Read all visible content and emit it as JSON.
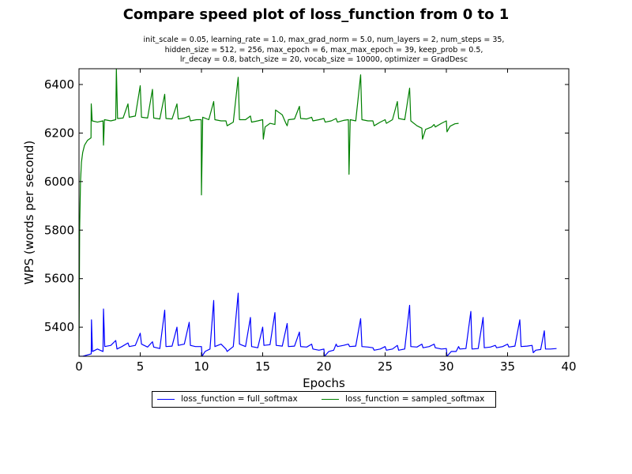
{
  "title": "Compare speed plot of loss_function from 0 to 1",
  "subtitle_lines": [
    "init_scale = 0.05, learning_rate = 1.0, max_grad_norm = 5.0, num_layers = 2, num_steps = 35,",
    "hidden_size = 512,   = 256, max_epoch = 6, max_max_epoch = 39, keep_prob = 0.5,",
    "lr_decay = 0.8, batch_size = 20, vocab_size = 10000, optimizer = GradDesc"
  ],
  "chart_data": {
    "type": "line",
    "xlabel": "Epochs",
    "ylabel": "WPS (words per second)",
    "xlim": [
      0,
      40
    ],
    "ylim": [
      5280,
      6465
    ],
    "xticks": [
      0,
      5,
      10,
      15,
      20,
      25,
      30,
      35,
      40
    ],
    "yticks": [
      5400,
      5600,
      5800,
      6000,
      6200,
      6400
    ],
    "grid": false,
    "legend_position": "bottom-center",
    "series": [
      {
        "name": "loss_function = full_softmax",
        "color": "#0000ff",
        "points": [
          [
            0.0,
            5280
          ],
          [
            0.3,
            5280
          ],
          [
            1.0,
            5290
          ],
          [
            1.02,
            5430
          ],
          [
            1.1,
            5300
          ],
          [
            1.5,
            5310
          ],
          [
            1.96,
            5300
          ],
          [
            2.0,
            5475
          ],
          [
            2.1,
            5320
          ],
          [
            2.6,
            5325
          ],
          [
            3.0,
            5345
          ],
          [
            3.1,
            5310
          ],
          [
            3.5,
            5320
          ],
          [
            4.0,
            5335
          ],
          [
            4.1,
            5320
          ],
          [
            4.6,
            5325
          ],
          [
            5.0,
            5375
          ],
          [
            5.1,
            5330
          ],
          [
            5.6,
            5318
          ],
          [
            6.0,
            5340
          ],
          [
            6.1,
            5318
          ],
          [
            6.6,
            5312
          ],
          [
            7.0,
            5470
          ],
          [
            7.1,
            5320
          ],
          [
            7.6,
            5322
          ],
          [
            8.0,
            5400
          ],
          [
            8.1,
            5325
          ],
          [
            8.6,
            5330
          ],
          [
            9.0,
            5420
          ],
          [
            9.1,
            5325
          ],
          [
            9.5,
            5320
          ],
          [
            10.0,
            5320
          ],
          [
            10.05,
            5280
          ],
          [
            10.3,
            5300
          ],
          [
            10.7,
            5310
          ],
          [
            11.0,
            5510
          ],
          [
            11.1,
            5320
          ],
          [
            11.6,
            5330
          ],
          [
            12.0,
            5310
          ],
          [
            12.1,
            5300
          ],
          [
            12.6,
            5320
          ],
          [
            13.0,
            5540
          ],
          [
            13.1,
            5330
          ],
          [
            13.6,
            5320
          ],
          [
            14.0,
            5440
          ],
          [
            14.1,
            5320
          ],
          [
            14.6,
            5315
          ],
          [
            15.0,
            5400
          ],
          [
            15.1,
            5325
          ],
          [
            15.6,
            5328
          ],
          [
            16.0,
            5460
          ],
          [
            16.1,
            5325
          ],
          [
            16.6,
            5322
          ],
          [
            17.0,
            5415
          ],
          [
            17.1,
            5320
          ],
          [
            17.6,
            5322
          ],
          [
            18.0,
            5380
          ],
          [
            18.1,
            5320
          ],
          [
            18.6,
            5318
          ],
          [
            19.0,
            5330
          ],
          [
            19.1,
            5310
          ],
          [
            19.6,
            5305
          ],
          [
            20.0,
            5310
          ],
          [
            20.05,
            5280
          ],
          [
            20.4,
            5300
          ],
          [
            20.8,
            5305
          ],
          [
            21.0,
            5330
          ],
          [
            21.1,
            5320
          ],
          [
            21.6,
            5325
          ],
          [
            22.0,
            5330
          ],
          [
            22.1,
            5320
          ],
          [
            22.6,
            5322
          ],
          [
            23.0,
            5435
          ],
          [
            23.1,
            5320
          ],
          [
            23.6,
            5318
          ],
          [
            24.0,
            5315
          ],
          [
            24.1,
            5305
          ],
          [
            24.6,
            5310
          ],
          [
            25.0,
            5320
          ],
          [
            25.1,
            5305
          ],
          [
            25.6,
            5310
          ],
          [
            26.0,
            5325
          ],
          [
            26.1,
            5305
          ],
          [
            26.6,
            5310
          ],
          [
            27.0,
            5490
          ],
          [
            27.1,
            5320
          ],
          [
            27.6,
            5318
          ],
          [
            28.0,
            5330
          ],
          [
            28.1,
            5315
          ],
          [
            28.6,
            5320
          ],
          [
            29.0,
            5330
          ],
          [
            29.1,
            5315
          ],
          [
            29.6,
            5310
          ],
          [
            30.0,
            5312
          ],
          [
            30.05,
            5280
          ],
          [
            30.4,
            5300
          ],
          [
            30.8,
            5300
          ],
          [
            31.0,
            5320
          ],
          [
            31.1,
            5310
          ],
          [
            31.6,
            5312
          ],
          [
            32.0,
            5465
          ],
          [
            32.1,
            5310
          ],
          [
            32.6,
            5312
          ],
          [
            33.0,
            5440
          ],
          [
            33.1,
            5315
          ],
          [
            33.6,
            5318
          ],
          [
            34.0,
            5325
          ],
          [
            34.1,
            5315
          ],
          [
            34.6,
            5320
          ],
          [
            35.0,
            5330
          ],
          [
            35.1,
            5318
          ],
          [
            35.6,
            5322
          ],
          [
            36.0,
            5430
          ],
          [
            36.1,
            5320
          ],
          [
            36.6,
            5322
          ],
          [
            37.0,
            5325
          ],
          [
            37.1,
            5295
          ],
          [
            37.3,
            5305
          ],
          [
            37.7,
            5308
          ],
          [
            38.0,
            5385
          ],
          [
            38.1,
            5310
          ],
          [
            38.5,
            5310
          ],
          [
            39.0,
            5312
          ]
        ]
      },
      {
        "name": "loss_function = sampled_softmax",
        "color": "#008000",
        "points": [
          [
            0.0,
            5280
          ],
          [
            0.05,
            5800
          ],
          [
            0.12,
            6000
          ],
          [
            0.2,
            6080
          ],
          [
            0.3,
            6120
          ],
          [
            0.45,
            6150
          ],
          [
            0.7,
            6170
          ],
          [
            0.98,
            6180
          ],
          [
            1.0,
            6320
          ],
          [
            1.08,
            6250
          ],
          [
            1.5,
            6245
          ],
          [
            1.96,
            6250
          ],
          [
            2.0,
            6150
          ],
          [
            2.08,
            6255
          ],
          [
            2.6,
            6250
          ],
          [
            3.0,
            6255
          ],
          [
            3.05,
            6465
          ],
          [
            3.15,
            6260
          ],
          [
            3.6,
            6262
          ],
          [
            4.0,
            6320
          ],
          [
            4.1,
            6265
          ],
          [
            4.6,
            6270
          ],
          [
            5.0,
            6395
          ],
          [
            5.1,
            6265
          ],
          [
            5.6,
            6262
          ],
          [
            6.0,
            6380
          ],
          [
            6.1,
            6262
          ],
          [
            6.6,
            6258
          ],
          [
            7.0,
            6360
          ],
          [
            7.1,
            6260
          ],
          [
            7.6,
            6258
          ],
          [
            8.0,
            6320
          ],
          [
            8.1,
            6258
          ],
          [
            8.6,
            6262
          ],
          [
            9.0,
            6270
          ],
          [
            9.1,
            6250
          ],
          [
            9.6,
            6255
          ],
          [
            9.98,
            6255
          ],
          [
            10.0,
            5945
          ],
          [
            10.1,
            6265
          ],
          [
            10.6,
            6255
          ],
          [
            11.0,
            6330
          ],
          [
            11.1,
            6255
          ],
          [
            11.6,
            6250
          ],
          [
            12.0,
            6250
          ],
          [
            12.1,
            6230
          ],
          [
            12.6,
            6245
          ],
          [
            13.0,
            6430
          ],
          [
            13.1,
            6255
          ],
          [
            13.6,
            6255
          ],
          [
            14.0,
            6270
          ],
          [
            14.1,
            6245
          ],
          [
            14.6,
            6250
          ],
          [
            15.0,
            6255
          ],
          [
            15.05,
            6175
          ],
          [
            15.2,
            6225
          ],
          [
            15.6,
            6240
          ],
          [
            16.0,
            6235
          ],
          [
            16.05,
            6295
          ],
          [
            16.6,
            6275
          ],
          [
            16.9,
            6240
          ],
          [
            17.0,
            6230
          ],
          [
            17.1,
            6255
          ],
          [
            17.6,
            6258
          ],
          [
            18.0,
            6310
          ],
          [
            18.1,
            6260
          ],
          [
            18.6,
            6258
          ],
          [
            19.0,
            6265
          ],
          [
            19.1,
            6250
          ],
          [
            19.6,
            6255
          ],
          [
            20.0,
            6260
          ],
          [
            20.1,
            6245
          ],
          [
            20.6,
            6250
          ],
          [
            21.0,
            6260
          ],
          [
            21.1,
            6245
          ],
          [
            21.6,
            6252
          ],
          [
            22.0,
            6255
          ],
          [
            22.05,
            6030
          ],
          [
            22.15,
            6255
          ],
          [
            22.6,
            6250
          ],
          [
            23.0,
            6440
          ],
          [
            23.1,
            6255
          ],
          [
            23.6,
            6250
          ],
          [
            24.0,
            6250
          ],
          [
            24.1,
            6230
          ],
          [
            24.6,
            6245
          ],
          [
            25.0,
            6255
          ],
          [
            25.1,
            6240
          ],
          [
            25.6,
            6255
          ],
          [
            26.0,
            6330
          ],
          [
            26.1,
            6260
          ],
          [
            26.6,
            6255
          ],
          [
            27.0,
            6385
          ],
          [
            27.1,
            6250
          ],
          [
            27.6,
            6230
          ],
          [
            28.0,
            6220
          ],
          [
            28.05,
            6175
          ],
          [
            28.3,
            6215
          ],
          [
            28.8,
            6225
          ],
          [
            29.0,
            6235
          ],
          [
            29.1,
            6225
          ],
          [
            29.6,
            6240
          ],
          [
            30.0,
            6250
          ],
          [
            30.05,
            6205
          ],
          [
            30.3,
            6228
          ],
          [
            30.7,
            6238
          ],
          [
            31.0,
            6240
          ]
        ]
      }
    ]
  }
}
